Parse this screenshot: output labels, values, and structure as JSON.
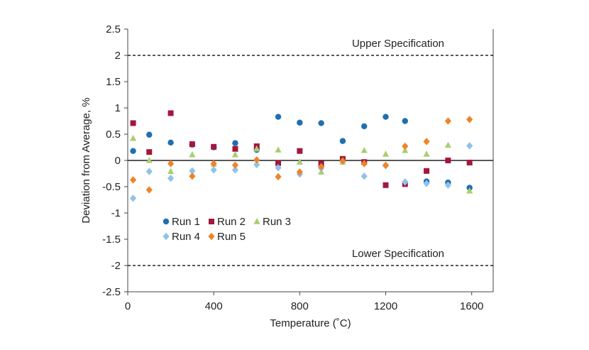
{
  "chart_data": {
    "type": "scatter",
    "xlabel": "Temperature (˚C)",
    "ylabel": "Deviation from Average, %",
    "xlim": [
      0,
      1700
    ],
    "ylim": [
      -2.5,
      2.5
    ],
    "x_ticks": [
      0,
      400,
      800,
      1200,
      1600
    ],
    "y_ticks": [
      -2.5,
      -2,
      -1.5,
      -1,
      -0.5,
      0,
      0.5,
      1,
      1.5,
      2,
      2.5
    ],
    "x_tick_labels": [
      "0",
      "400",
      "800",
      "1200",
      "1600"
    ],
    "y_tick_labels": [
      "-2.5",
      "-2",
      "-1.5",
      "-1",
      "-0.5",
      "0",
      "0.5",
      "1",
      "1.5",
      "2",
      "2.5"
    ],
    "grid": false,
    "legend_position": "lower-left",
    "reference_lines": [
      {
        "label": "Upper Specification",
        "y": 2
      },
      {
        "label": "Lower Specification",
        "y": -2
      }
    ],
    "series": [
      {
        "name": "Run 1",
        "marker": "circle",
        "color": "#1f6fb2",
        "points": [
          [
            25,
            0.18
          ],
          [
            100,
            0.49
          ],
          [
            200,
            0.34
          ],
          [
            300,
            0.3
          ],
          [
            400,
            0.25
          ],
          [
            500,
            0.33
          ],
          [
            600,
            0.2
          ],
          [
            700,
            0.83
          ],
          [
            800,
            0.72
          ],
          [
            900,
            0.71
          ],
          [
            1000,
            0.37
          ],
          [
            1100,
            0.65
          ],
          [
            1200,
            0.83
          ],
          [
            1290,
            0.75
          ],
          [
            1390,
            -0.4
          ],
          [
            1490,
            -0.42
          ],
          [
            1590,
            -0.52
          ]
        ]
      },
      {
        "name": "Run 2",
        "marker": "square",
        "color": "#a3173f",
        "points": [
          [
            25,
            0.71
          ],
          [
            100,
            0.16
          ],
          [
            200,
            0.9
          ],
          [
            300,
            0.31
          ],
          [
            400,
            0.26
          ],
          [
            500,
            0.22
          ],
          [
            600,
            0.27
          ],
          [
            700,
            -0.05
          ],
          [
            800,
            0.18
          ],
          [
            900,
            -0.06
          ],
          [
            1000,
            0.03
          ],
          [
            1100,
            -0.03
          ],
          [
            1200,
            -0.47
          ],
          [
            1290,
            -0.45
          ],
          [
            1390,
            -0.2
          ],
          [
            1490,
            0.0
          ],
          [
            1590,
            -0.04
          ]
        ]
      },
      {
        "name": "Run 3",
        "marker": "triangle",
        "color": "#a9cf6e",
        "points": [
          [
            25,
            0.42
          ],
          [
            100,
            0.0
          ],
          [
            200,
            -0.21
          ],
          [
            300,
            0.11
          ],
          [
            400,
            -0.07
          ],
          [
            500,
            0.11
          ],
          [
            600,
            0.22
          ],
          [
            700,
            0.2
          ],
          [
            800,
            -0.03
          ],
          [
            900,
            -0.22
          ],
          [
            1000,
            -0.03
          ],
          [
            1100,
            0.19
          ],
          [
            1200,
            0.12
          ],
          [
            1290,
            0.19
          ],
          [
            1390,
            0.12
          ],
          [
            1490,
            0.29
          ],
          [
            1590,
            -0.58
          ]
        ]
      },
      {
        "name": "Run 4",
        "marker": "diamond",
        "color": "#8fc3ea",
        "points": [
          [
            25,
            -0.72
          ],
          [
            100,
            -0.21
          ],
          [
            200,
            -0.34
          ],
          [
            300,
            -0.2
          ],
          [
            400,
            -0.18
          ],
          [
            500,
            -0.18
          ],
          [
            600,
            -0.08
          ],
          [
            700,
            -0.14
          ],
          [
            800,
            -0.26
          ],
          [
            900,
            -0.15
          ],
          [
            1000,
            -0.02
          ],
          [
            1100,
            -0.3
          ],
          [
            1200,
            -0.1
          ],
          [
            1290,
            -0.41
          ],
          [
            1390,
            -0.44
          ],
          [
            1490,
            -0.47
          ],
          [
            1590,
            0.28
          ]
        ]
      },
      {
        "name": "Run 5",
        "marker": "diamond",
        "color": "#ee8428",
        "points": [
          [
            25,
            -0.37
          ],
          [
            100,
            -0.56
          ],
          [
            200,
            -0.06
          ],
          [
            300,
            -0.3
          ],
          [
            400,
            -0.06
          ],
          [
            500,
            -0.09
          ],
          [
            600,
            0.01
          ],
          [
            700,
            -0.31
          ],
          [
            800,
            -0.22
          ],
          [
            900,
            -0.12
          ],
          [
            1000,
            -0.01
          ],
          [
            1100,
            -0.06
          ],
          [
            1200,
            -0.09
          ],
          [
            1290,
            0.27
          ],
          [
            1390,
            0.36
          ],
          [
            1490,
            0.75
          ],
          [
            1590,
            0.78
          ]
        ]
      }
    ]
  }
}
